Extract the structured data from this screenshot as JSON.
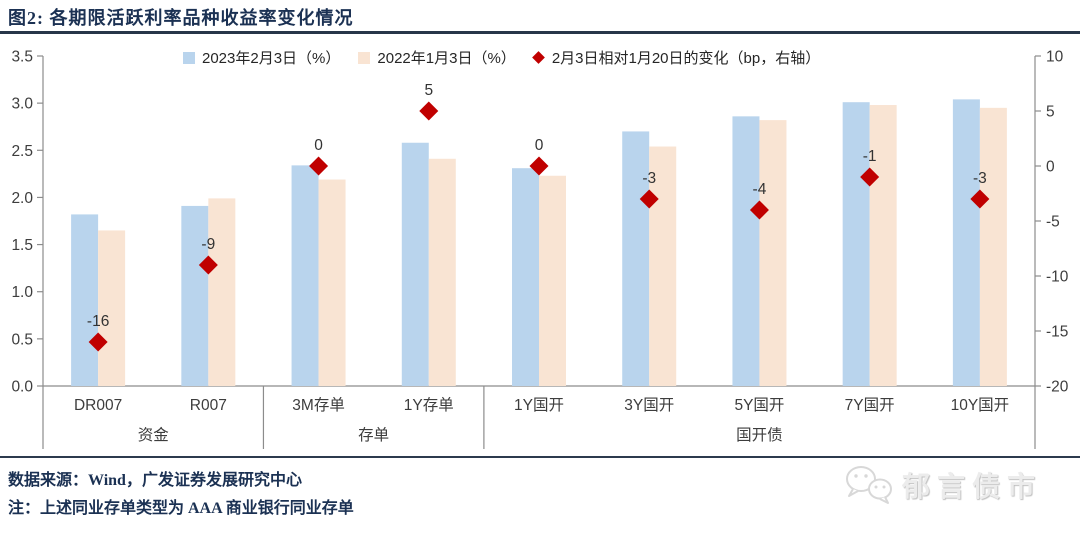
{
  "figure": {
    "title": "图2: 各期限活跃利率品种收益率变化情况",
    "source_note": "数据来源：Wind，广发证券发展研究中心",
    "footnote": "注：上述同业存单类型为 AAA 商业银行同业存单",
    "watermark": "郁言债市"
  },
  "colors": {
    "title_navy": "#1b3153",
    "rule_dark": "#273649",
    "axis_gray": "#8c8c8c",
    "tick_text": "#3d3d3d",
    "bar_blue": "#B9D4ED",
    "bar_peach": "#F9E4D3",
    "diamond_red": "#C00000"
  },
  "chart_data": {
    "type": "bar",
    "title": "各期限活跃利率品种收益率变化情况",
    "categories": [
      "DR007",
      "R007",
      "3M存单",
      "1Y存单",
      "1Y国开",
      "3Y国开",
      "5Y国开",
      "7Y国开",
      "10Y国开"
    ],
    "groups": [
      {
        "label": "资金",
        "span": [
          0,
          1
        ]
      },
      {
        "label": "存单",
        "span": [
          2,
          3
        ]
      },
      {
        "label": "国开债",
        "span": [
          4,
          8
        ]
      }
    ],
    "series": [
      {
        "name": "2023年2月3日（%）",
        "type": "bar",
        "axis": "left",
        "color": "#B9D4ED",
        "values": [
          1.82,
          1.91,
          2.34,
          2.58,
          2.31,
          2.7,
          2.86,
          3.01,
          3.04
        ]
      },
      {
        "name": "2022年1月3日（%）",
        "type": "bar",
        "axis": "left",
        "color": "#F9E4D3",
        "values": [
          1.65,
          1.99,
          2.19,
          2.41,
          2.23,
          2.54,
          2.82,
          2.98,
          2.95
        ]
      },
      {
        "name": "2月3日相对1月20日的变化（bp，右轴）",
        "type": "scatter-diamond",
        "axis": "right",
        "color": "#C00000",
        "values": [
          -16,
          -9,
          0,
          5,
          0,
          -3,
          -4,
          -1,
          -3
        ],
        "labels": [
          "-16",
          "-9",
          "0",
          "5",
          "0",
          "-3",
          "-4",
          "-1",
          "-3"
        ]
      }
    ],
    "left_axis": {
      "min": 0,
      "max": 3.5,
      "step": 0.5,
      "ticks": [
        "3.5",
        "3.0",
        "2.5",
        "2.0",
        "1.5",
        "1.0",
        "0.5",
        "0.0"
      ]
    },
    "right_axis": {
      "min": -20,
      "max": 10,
      "step": 5,
      "ticks": [
        "10",
        "5",
        "0",
        "-5",
        "-10",
        "-15",
        "-20"
      ]
    },
    "grid": false,
    "legend_position": "top"
  }
}
